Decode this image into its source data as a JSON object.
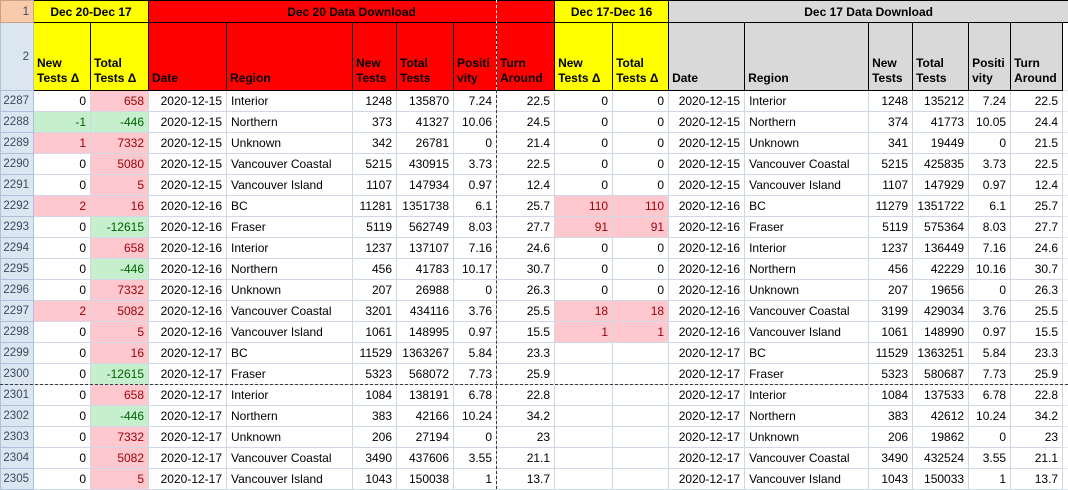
{
  "app": {
    "type": "spreadsheet"
  },
  "colors": {
    "header_yellow": "#FFFF00",
    "header_red": "#FF0000",
    "header_gray": "#D9D9D9",
    "bad_fill": "#FFC7CE",
    "bad_text": "#9C0006",
    "good_fill": "#C6EFCE",
    "good_text": "#006100",
    "row1_header_fill": "#F8CBAD",
    "row_header_fill": "#DCE6F1"
  },
  "row_labels": {
    "row1": "1",
    "row2": "2"
  },
  "merged_headers": [
    {
      "label": "Dec 20-Dec 17",
      "style": "yellow",
      "span": 2
    },
    {
      "label": "Dec 20 Data Download",
      "style": "red",
      "span": 6
    },
    {
      "label": "Dec 17-Dec 16",
      "style": "yellow",
      "span": 2
    },
    {
      "label": "Dec 17 Data Download",
      "style": "gray",
      "span": 7
    }
  ],
  "column_headers": [
    {
      "label": "New Tests Δ",
      "style": "yellow"
    },
    {
      "label": "Total Tests Δ",
      "style": "yellow"
    },
    {
      "label": "Date",
      "style": "red"
    },
    {
      "label": "Region",
      "style": "red"
    },
    {
      "label": "New Tests",
      "style": "red"
    },
    {
      "label": "Total Tests",
      "style": "red"
    },
    {
      "label": "Positi vity",
      "style": "red"
    },
    {
      "label": "Turn Around",
      "style": "red"
    },
    {
      "label": "New Tests Δ",
      "style": "yellow"
    },
    {
      "label": "Total Tests Δ",
      "style": "yellow"
    },
    {
      "label": "Date",
      "style": "gray"
    },
    {
      "label": "Region",
      "style": "gray"
    },
    {
      "label": "New Tests",
      "style": "gray"
    },
    {
      "label": "Total Tests",
      "style": "gray"
    },
    {
      "label": "Positi vity",
      "style": "gray"
    },
    {
      "label": "Turn Around",
      "style": "gray"
    }
  ],
  "rows": [
    {
      "num": "2287",
      "cells": [
        "0",
        {
          "v": "658",
          "m": "bad"
        },
        "2020-12-15",
        "Interior",
        "1248",
        "135870",
        "7.24",
        "22.5",
        "0",
        "0",
        "2020-12-15",
        "Interior",
        "1248",
        "135212",
        "7.24",
        "22.5"
      ]
    },
    {
      "num": "2288",
      "cells": [
        {
          "v": "-1",
          "m": "good"
        },
        {
          "v": "-446",
          "m": "good"
        },
        "2020-12-15",
        "Northern",
        "373",
        "41327",
        "10.06",
        "24.5",
        "0",
        "0",
        "2020-12-15",
        "Northern",
        "374",
        "41773",
        "10.05",
        "24.4"
      ]
    },
    {
      "num": "2289",
      "cells": [
        {
          "v": "1",
          "m": "bad"
        },
        {
          "v": "7332",
          "m": "bad"
        },
        "2020-12-15",
        "Unknown",
        "342",
        "26781",
        "0",
        "21.4",
        "0",
        "0",
        "2020-12-15",
        "Unknown",
        "341",
        "19449",
        "0",
        "21.5"
      ]
    },
    {
      "num": "2290",
      "cells": [
        "0",
        {
          "v": "5080",
          "m": "bad"
        },
        "2020-12-15",
        "Vancouver Coastal",
        "5215",
        "430915",
        "3.73",
        "22.5",
        "0",
        "0",
        "2020-12-15",
        "Vancouver Coastal",
        "5215",
        "425835",
        "3.73",
        "22.5"
      ]
    },
    {
      "num": "2291",
      "cells": [
        "0",
        {
          "v": "5",
          "m": "bad"
        },
        "2020-12-15",
        "Vancouver Island",
        "1107",
        "147934",
        "0.97",
        "12.4",
        "0",
        "0",
        "2020-12-15",
        "Vancouver Island",
        "1107",
        "147929",
        "0.97",
        "12.4"
      ]
    },
    {
      "num": "2292",
      "cells": [
        {
          "v": "2",
          "m": "bad"
        },
        {
          "v": "16",
          "m": "bad"
        },
        "2020-12-16",
        "BC",
        "11281",
        "1351738",
        "6.1",
        "25.7",
        {
          "v": "110",
          "m": "bad"
        },
        {
          "v": "110",
          "m": "bad"
        },
        "2020-12-16",
        "BC",
        "11279",
        "1351722",
        "6.1",
        "25.7"
      ]
    },
    {
      "num": "2293",
      "cells": [
        "0",
        {
          "v": "-12615",
          "m": "good"
        },
        "2020-12-16",
        "Fraser",
        "5119",
        "562749",
        "8.03",
        "27.7",
        {
          "v": "91",
          "m": "bad"
        },
        {
          "v": "91",
          "m": "bad"
        },
        "2020-12-16",
        "Fraser",
        "5119",
        "575364",
        "8.03",
        "27.7"
      ]
    },
    {
      "num": "2294",
      "cells": [
        "0",
        {
          "v": "658",
          "m": "bad"
        },
        "2020-12-16",
        "Interior",
        "1237",
        "137107",
        "7.16",
        "24.6",
        "0",
        "0",
        "2020-12-16",
        "Interior",
        "1237",
        "136449",
        "7.16",
        "24.6"
      ]
    },
    {
      "num": "2295",
      "cells": [
        "0",
        {
          "v": "-446",
          "m": "good"
        },
        "2020-12-16",
        "Northern",
        "456",
        "41783",
        "10.17",
        "30.7",
        "0",
        "0",
        "2020-12-16",
        "Northern",
        "456",
        "42229",
        "10.16",
        "30.7"
      ]
    },
    {
      "num": "2296",
      "cells": [
        "0",
        {
          "v": "7332",
          "m": "bad"
        },
        "2020-12-16",
        "Unknown",
        "207",
        "26988",
        "0",
        "26.3",
        "0",
        "0",
        "2020-12-16",
        "Unknown",
        "207",
        "19656",
        "0",
        "26.3"
      ]
    },
    {
      "num": "2297",
      "cells": [
        {
          "v": "2",
          "m": "bad"
        },
        {
          "v": "5082",
          "m": "bad"
        },
        "2020-12-16",
        "Vancouver Coastal",
        "3201",
        "434116",
        "3.76",
        "25.5",
        {
          "v": "18",
          "m": "bad"
        },
        {
          "v": "18",
          "m": "bad"
        },
        "2020-12-16",
        "Vancouver Coastal",
        "3199",
        "429034",
        "3.76",
        "25.5"
      ]
    },
    {
      "num": "2298",
      "cells": [
        "0",
        {
          "v": "5",
          "m": "bad"
        },
        "2020-12-16",
        "Vancouver Island",
        "1061",
        "148995",
        "0.97",
        "15.5",
        {
          "v": "1",
          "m": "bad"
        },
        {
          "v": "1",
          "m": "bad"
        },
        "2020-12-16",
        "Vancouver Island",
        "1061",
        "148990",
        "0.97",
        "15.5"
      ]
    },
    {
      "num": "2299",
      "cells": [
        "0",
        {
          "v": "16",
          "m": "bad"
        },
        "2020-12-17",
        "BC",
        "11529",
        "1363267",
        "5.84",
        "23.3",
        "",
        "",
        "2020-12-17",
        "BC",
        "11529",
        "1363251",
        "5.84",
        "23.3"
      ]
    },
    {
      "num": "2300",
      "cells": [
        "0",
        {
          "v": "-12615",
          "m": "good"
        },
        "2020-12-17",
        "Fraser",
        "5323",
        "568072",
        "7.73",
        "25.9",
        "",
        "",
        "2020-12-17",
        "Fraser",
        "5323",
        "580687",
        "7.73",
        "25.9"
      ]
    },
    {
      "num": "2301",
      "cells": [
        "0",
        {
          "v": "658",
          "m": "bad"
        },
        "2020-12-17",
        "Interior",
        "1084",
        "138191",
        "6.78",
        "22.8",
        "",
        "",
        "2020-12-17",
        "Interior",
        "1084",
        "137533",
        "6.78",
        "22.8"
      ]
    },
    {
      "num": "2302",
      "cells": [
        "0",
        {
          "v": "-446",
          "m": "good"
        },
        "2020-12-17",
        "Northern",
        "383",
        "42166",
        "10.24",
        "34.2",
        "",
        "",
        "2020-12-17",
        "Northern",
        "383",
        "42612",
        "10.24",
        "34.2"
      ]
    },
    {
      "num": "2303",
      "cells": [
        "0",
        {
          "v": "7332",
          "m": "bad"
        },
        "2020-12-17",
        "Unknown",
        "206",
        "27194",
        "0",
        "23",
        "",
        "",
        "2020-12-17",
        "Unknown",
        "206",
        "19862",
        "0",
        "23"
      ]
    },
    {
      "num": "2304",
      "cells": [
        "0",
        {
          "v": "5082",
          "m": "bad"
        },
        "2020-12-17",
        "Vancouver Coastal",
        "3490",
        "437606",
        "3.55",
        "21.1",
        "",
        "",
        "2020-12-17",
        "Vancouver Coastal",
        "3490",
        "432524",
        "3.55",
        "21.1"
      ]
    },
    {
      "num": "2305",
      "cells": [
        "0",
        {
          "v": "5",
          "m": "bad"
        },
        "2020-12-17",
        "Vancouver Island",
        "1043",
        "150038",
        "1",
        "13.7",
        "",
        "",
        "2020-12-17",
        "Vancouver Island",
        "1043",
        "150033",
        "1",
        "13.7"
      ]
    }
  ]
}
